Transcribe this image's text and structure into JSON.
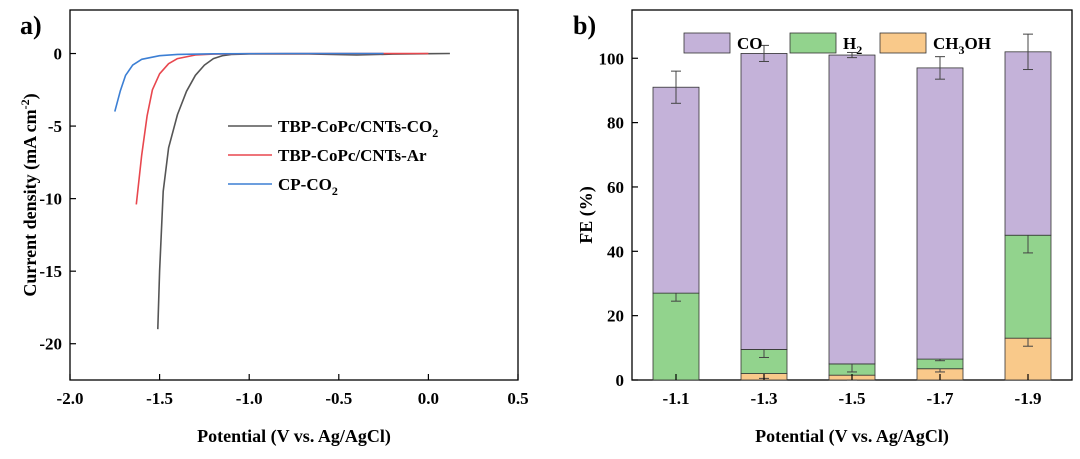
{
  "chart_data": [
    {
      "panel_label": "a)",
      "type": "line",
      "xlabel": "Potential (V vs. Ag/AgCl)",
      "ylabel": "Current density  (mA cm⁻²)",
      "ylabel_main": "Current density  (mA cm",
      "ylabel_sup": "-2",
      "ylabel_end": ")",
      "xlim": [
        -2.0,
        0.5
      ],
      "ylim": [
        -22.5,
        3
      ],
      "xticks": [
        -2.0,
        -1.5,
        -1.0,
        -0.5,
        0.0,
        0.5
      ],
      "xtick_labels": [
        "-2.0",
        "-1.5",
        "-1.0",
        "-0.5",
        "0.0",
        "0.5"
      ],
      "yticks": [
        0,
        -5,
        -10,
        -15,
        -20
      ],
      "ytick_labels": [
        "0",
        "-5",
        "-10",
        "-15",
        "-20"
      ],
      "legend_position": "center-right",
      "series": [
        {
          "name": "TBP-CoPc/CNTs-CO2",
          "legend_main": "TBP-CoPc/CNTs-CO",
          "legend_sub": "2",
          "color": "#555555",
          "points": [
            [
              -1.51,
              -19.0
            ],
            [
              -1.5,
              -15.0
            ],
            [
              -1.48,
              -9.5
            ],
            [
              -1.45,
              -6.5
            ],
            [
              -1.4,
              -4.2
            ],
            [
              -1.35,
              -2.6
            ],
            [
              -1.3,
              -1.5
            ],
            [
              -1.25,
              -0.8
            ],
            [
              -1.2,
              -0.35
            ],
            [
              -1.15,
              -0.15
            ],
            [
              -1.1,
              -0.06
            ],
            [
              -1.0,
              -0.03
            ],
            [
              -0.7,
              -0.02
            ],
            [
              -0.4,
              -0.1
            ],
            [
              -0.2,
              -0.04
            ],
            [
              0.0,
              -0.01
            ],
            [
              0.12,
              0.0
            ]
          ]
        },
        {
          "name": "TBP-CoPc/CNTs-Ar",
          "legend_main": "TBP-CoPc/CNTs-Ar",
          "legend_sub": "",
          "color": "#e8474e",
          "points": [
            [
              -1.63,
              -10.4
            ],
            [
              -1.6,
              -7.0
            ],
            [
              -1.57,
              -4.3
            ],
            [
              -1.54,
              -2.5
            ],
            [
              -1.5,
              -1.4
            ],
            [
              -1.45,
              -0.7
            ],
            [
              -1.4,
              -0.35
            ],
            [
              -1.3,
              -0.1
            ],
            [
              -1.2,
              -0.04
            ],
            [
              -1.0,
              -0.01
            ],
            [
              -0.5,
              0.0
            ],
            [
              0.0,
              0.0
            ]
          ]
        },
        {
          "name": "CP-CO2",
          "legend_main": "CP-CO",
          "legend_sub": "2",
          "color": "#3c7fd4",
          "points": [
            [
              -1.75,
              -4.0
            ],
            [
              -1.72,
              -2.6
            ],
            [
              -1.69,
              -1.5
            ],
            [
              -1.65,
              -0.8
            ],
            [
              -1.6,
              -0.4
            ],
            [
              -1.5,
              -0.15
            ],
            [
              -1.4,
              -0.06
            ],
            [
              -1.2,
              -0.02
            ],
            [
              -0.8,
              0.0
            ],
            [
              -0.25,
              0.0
            ]
          ]
        }
      ]
    },
    {
      "panel_label": "b)",
      "type": "stacked-bar",
      "xlabel": "Potential (V vs. Ag/AgCl)",
      "ylabel": "FE (%)",
      "ylim": [
        0,
        115
      ],
      "yticks": [
        0,
        20,
        40,
        60,
        80,
        100
      ],
      "ytick_labels": [
        "0",
        "20",
        "40",
        "60",
        "80",
        "100"
      ],
      "categories": [
        "-1.1",
        "-1.3",
        "-1.5",
        "-1.7",
        "-1.9"
      ],
      "legend_position": "top",
      "series": [
        {
          "name": "CH3OH",
          "legend_a": "CH",
          "legend_sub1": "3",
          "legend_b": "OH",
          "color": "#f9c98a",
          "values": [
            0,
            2,
            1.5,
            3.5,
            13
          ],
          "errors": [
            0,
            1.5,
            1.5,
            1.0,
            2.5
          ]
        },
        {
          "name": "H2",
          "legend_a": "H",
          "legend_sub1": "2",
          "legend_b": "",
          "color": "#92d38d",
          "values": [
            27,
            7.5,
            3.5,
            3,
            32
          ],
          "errors": [
            2.5,
            2.5,
            2.5,
            0.5,
            5.5
          ]
        },
        {
          "name": "CO",
          "legend_a": "CO",
          "legend_sub1": "",
          "legend_b": "",
          "color": "#c4b2d9",
          "values": [
            64,
            92,
            96,
            90.5,
            57
          ],
          "errors": [
            5,
            2.5,
            0.8,
            3.5,
            5.5
          ]
        }
      ]
    }
  ]
}
